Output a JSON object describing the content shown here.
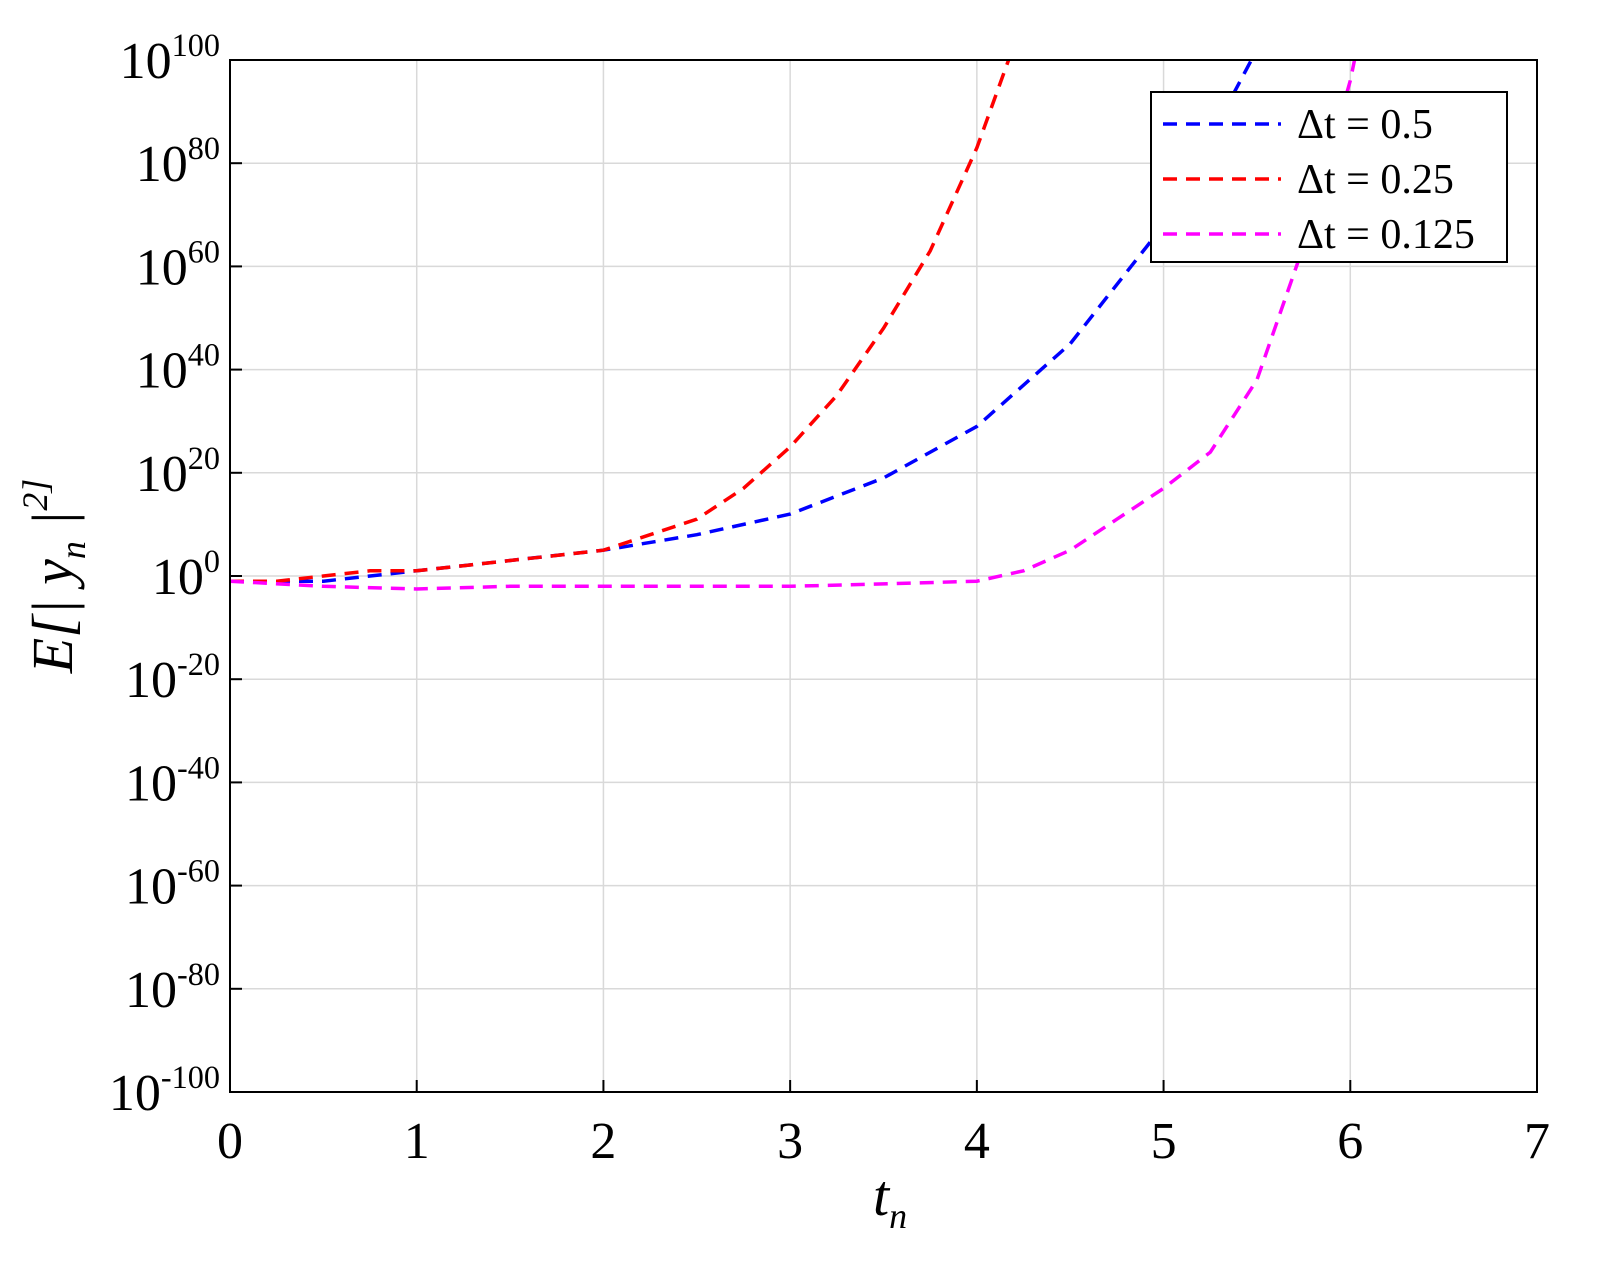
{
  "chart_data": {
    "type": "line",
    "xlabel": "t_n",
    "ylabel": "E[| y_n |^2]",
    "xlim": [
      0,
      7
    ],
    "xticks": [
      0,
      1,
      2,
      3,
      4,
      5,
      6,
      7
    ],
    "ylim": [
      1e-100,
      1e+100
    ],
    "yticks": [
      {
        "value": 1e-100,
        "label": "10^-100"
      },
      {
        "value": 1e-80,
        "label": "10^-80"
      },
      {
        "value": 1e-60,
        "label": "10^-60"
      },
      {
        "value": 1e-40,
        "label": "10^-40"
      },
      {
        "value": 1e-20,
        "label": "10^-20"
      },
      {
        "value": 1,
        "label": "10^0"
      },
      {
        "value": 1e+20,
        "label": "10^20"
      },
      {
        "value": 1e+40,
        "label": "10^40"
      },
      {
        "value": 1e+60,
        "label": "10^60"
      },
      {
        "value": 1e+80,
        "label": "10^80"
      },
      {
        "value": 1e+100,
        "label": "10^100"
      }
    ],
    "yscale": "log",
    "grid": true,
    "legend": "upper right",
    "series": [
      {
        "name": "Δt = 0.5",
        "color": "#0000ff",
        "x": [
          0,
          0.5,
          1,
          1.5,
          2,
          2.5,
          3,
          3.5,
          4,
          4.5,
          5,
          5.5
        ],
        "values": [
          0.1,
          0.1,
          10,
          1000,
          100000.0,
          100000000.0,
          1000000000000.0,
          1e+19,
          1e+29,
          1e+45,
          1e+68,
          1e+102
        ]
      },
      {
        "name": "Δt = 0.25",
        "color": "#ff0000",
        "x": [
          0,
          0.25,
          0.5,
          0.75,
          1,
          1.25,
          1.5,
          1.75,
          2,
          2.25,
          2.5,
          2.75,
          3,
          3.25,
          3.5,
          3.75,
          4,
          4.25
        ],
        "values": [
          0.1,
          0.1,
          1,
          10,
          10,
          100,
          1000,
          10000,
          100000.0,
          100000000.0,
          100000000000.0,
          1e+17,
          1e+25,
          1e+35,
          1e+48,
          1e+63,
          1e+83,
          1e+108
        ]
      },
      {
        "name": "Δt = 0.125",
        "color": "#ff00ff",
        "x": [
          0,
          0.5,
          1,
          1.5,
          2,
          2.5,
          3,
          3.5,
          4,
          4.25,
          4.5,
          4.75,
          5,
          5.25,
          5.5,
          5.75,
          6,
          6.125
        ],
        "values": [
          0.1,
          0.01,
          0.003,
          0.01,
          0.01,
          0.01,
          0.01,
          0.03,
          0.1,
          10,
          100000.0,
          100000000000.0,
          1e+17,
          1e+24,
          1e+38,
          1e+64,
          1e+96,
          1e+118
        ]
      }
    ]
  }
}
